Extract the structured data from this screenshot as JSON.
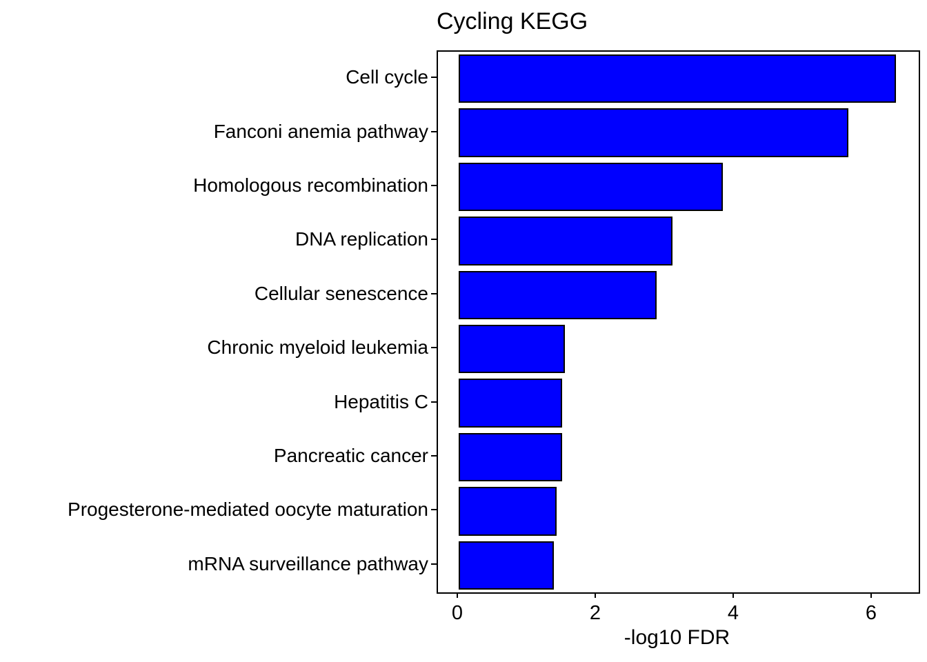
{
  "chart_data": {
    "type": "bar",
    "orientation": "horizontal",
    "title": "Cycling KEGG",
    "xlabel": "-log10 FDR",
    "ylabel": "",
    "categories": [
      "Cell cycle",
      "Fanconi anemia pathway",
      "Homologous recombination",
      "DNA replication",
      "Cellular senescence",
      "Chronic myeloid leukemia",
      "Hepatitis C",
      "Pancreatic cancer",
      "Progesterone-mediated oocyte maturation",
      "mRNA surveillance pathway"
    ],
    "values": [
      6.34,
      5.65,
      3.83,
      3.1,
      2.87,
      1.54,
      1.5,
      1.5,
      1.42,
      1.38
    ],
    "xlim": [
      -0.3,
      6.67
    ],
    "xticks": [
      0,
      2,
      4,
      6
    ],
    "xtick_labels": [
      "0",
      "2",
      "4",
      "6"
    ],
    "bar_color": "#0000FF",
    "bar_border_color": "#000000",
    "panel_border_color": "#000000",
    "text_color": "#000000",
    "grid": false,
    "legend": "none"
  }
}
